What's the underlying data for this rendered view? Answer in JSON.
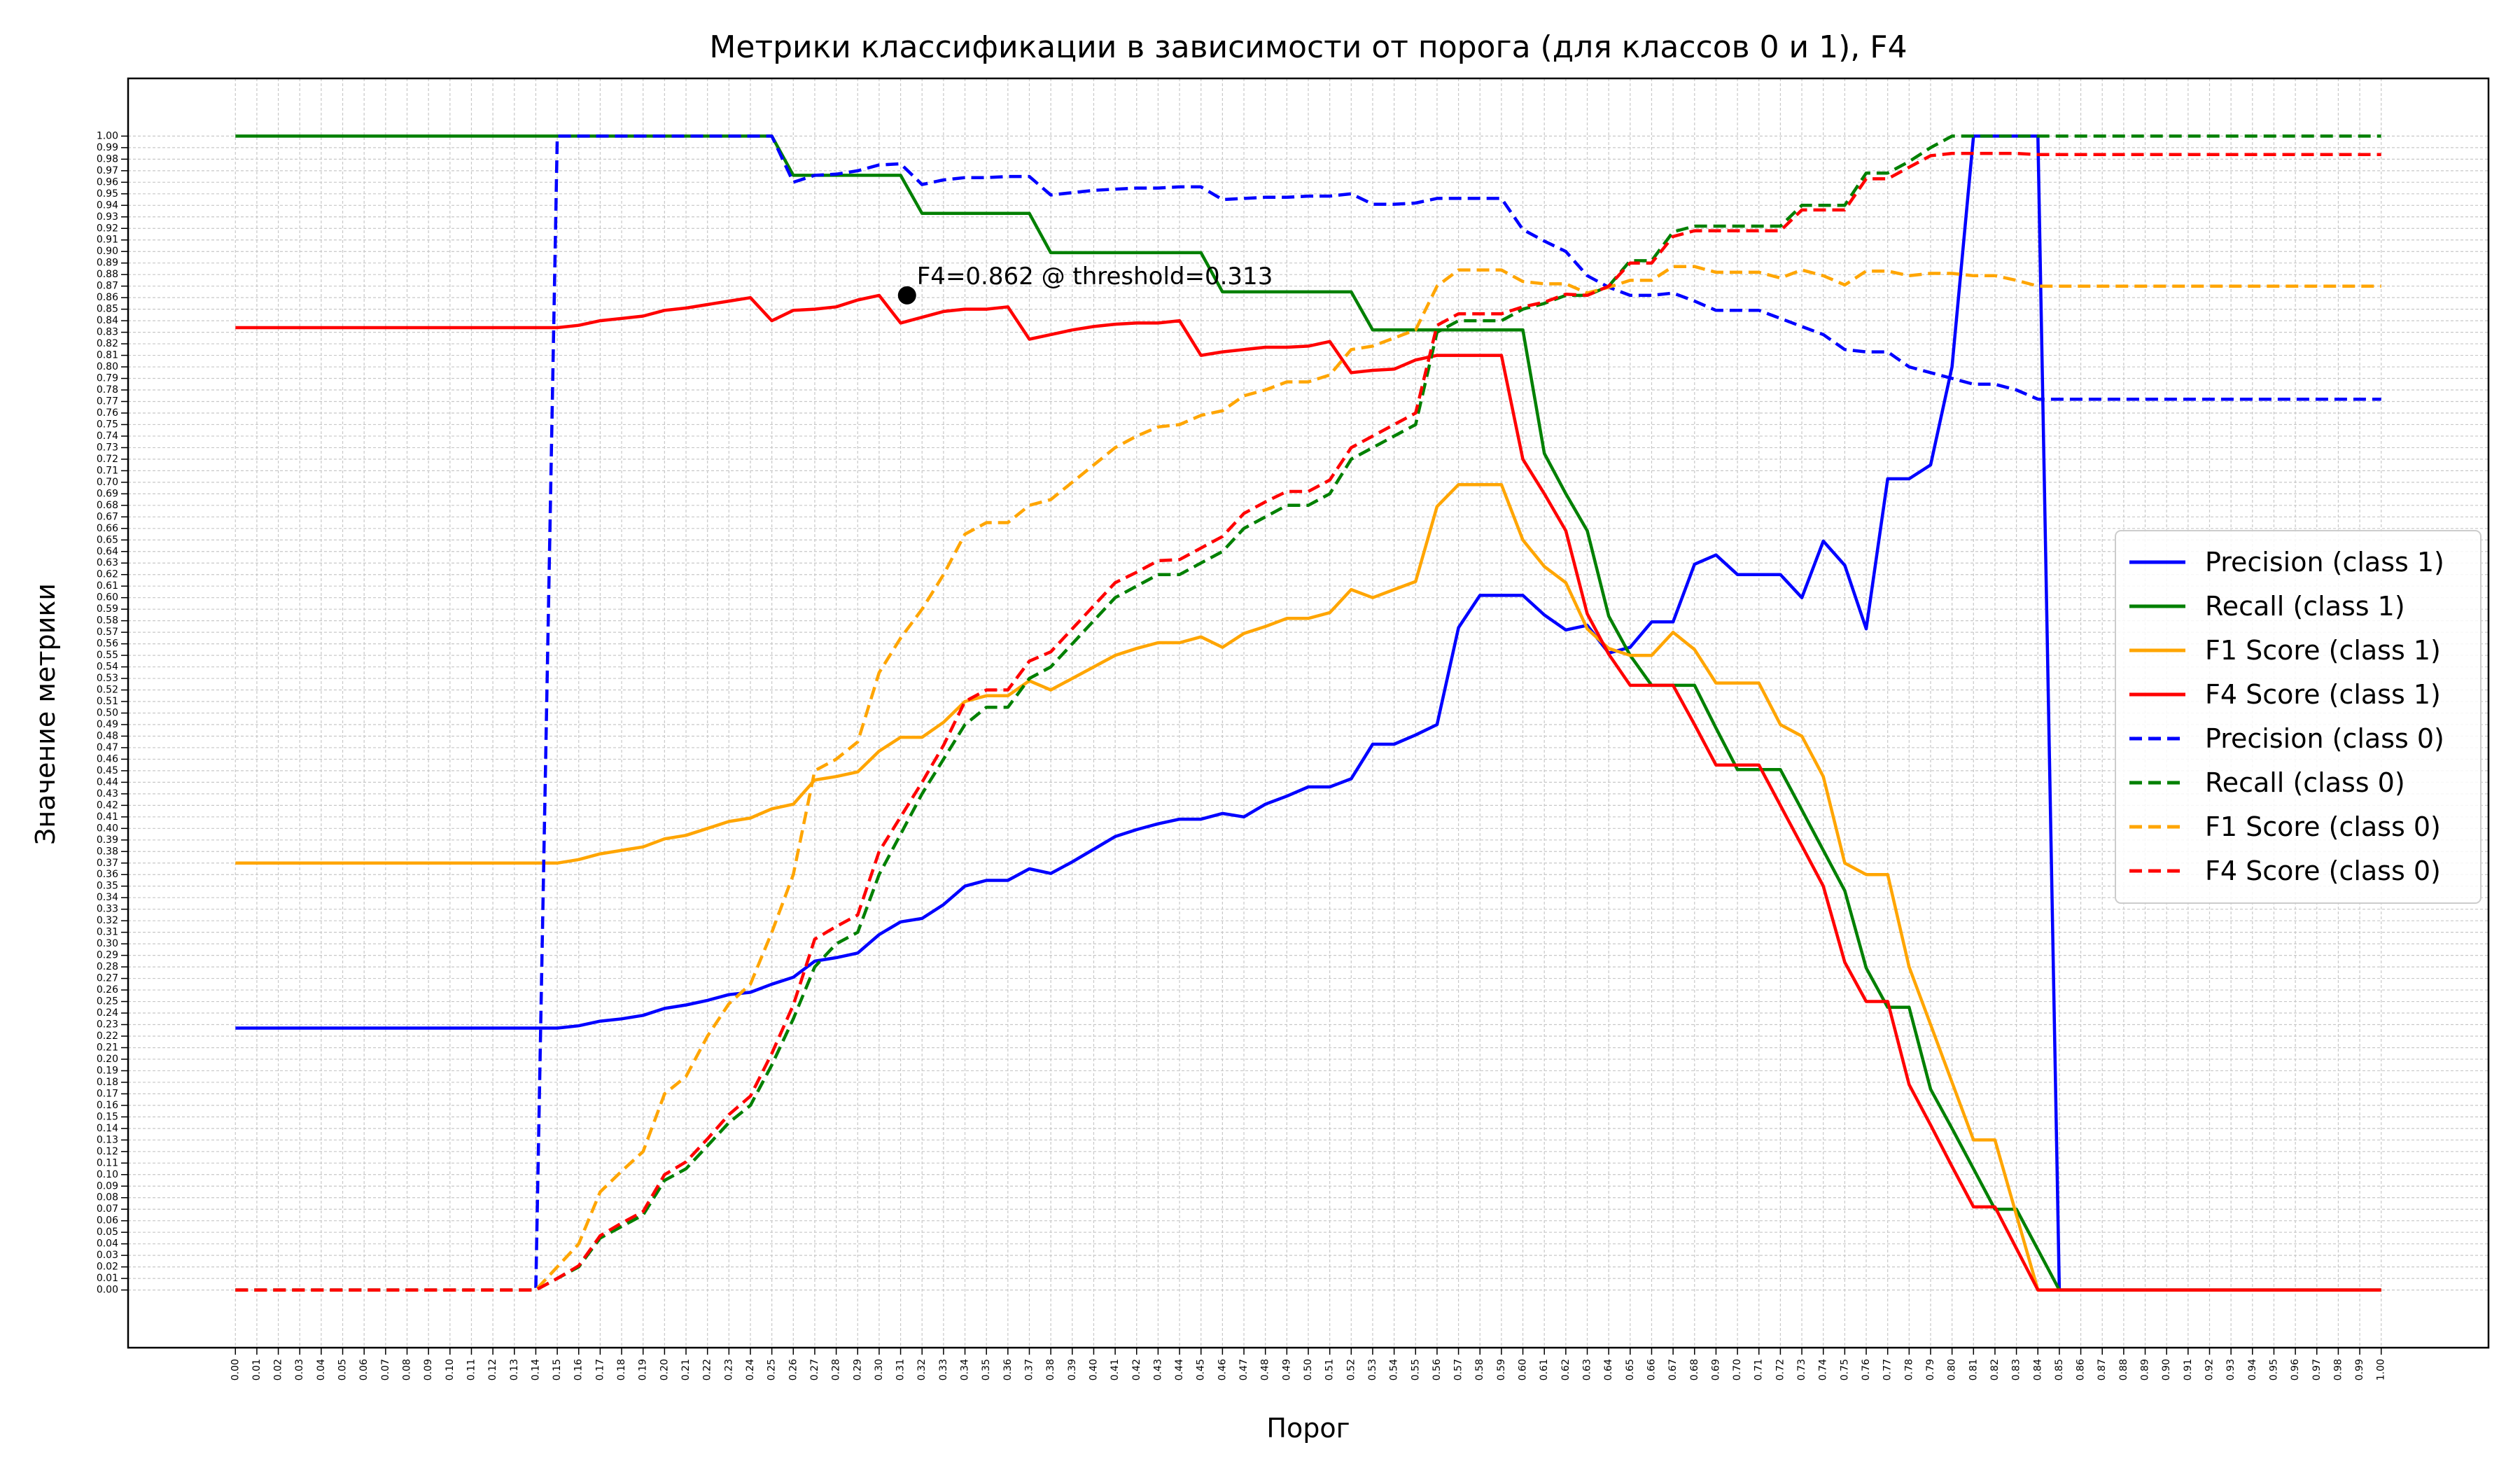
{
  "chart_data": {
    "type": "line",
    "title": "Метрики классификации в зависимости от порога (для классов 0 и 1), F4",
    "xlabel": "Порог",
    "ylabel": "Значение метрики",
    "xlim": [
      -0.05,
      1.05
    ],
    "ylim": [
      -0.05,
      1.05
    ],
    "grid": true,
    "legend_position": "center-right",
    "x": [
      0.0,
      0.01,
      0.02,
      0.03,
      0.04,
      0.05,
      0.06,
      0.07,
      0.08,
      0.09,
      0.1,
      0.11,
      0.12,
      0.13,
      0.14,
      0.15,
      0.16,
      0.17,
      0.18,
      0.19,
      0.2,
      0.21,
      0.22,
      0.23,
      0.24,
      0.25,
      0.26,
      0.27,
      0.28,
      0.29,
      0.3,
      0.31,
      0.32,
      0.33,
      0.34,
      0.35,
      0.36,
      0.37,
      0.38,
      0.39,
      0.4,
      0.41,
      0.42,
      0.43,
      0.44,
      0.45,
      0.46,
      0.47,
      0.48,
      0.49,
      0.5,
      0.51,
      0.52,
      0.53,
      0.54,
      0.55,
      0.56,
      0.57,
      0.58,
      0.59,
      0.6,
      0.61,
      0.62,
      0.63,
      0.64,
      0.65,
      0.66,
      0.67,
      0.68,
      0.69,
      0.7,
      0.71,
      0.72,
      0.73,
      0.74,
      0.75,
      0.76,
      0.77,
      0.78,
      0.79,
      0.8,
      0.81,
      0.82,
      0.83,
      0.84,
      0.85,
      0.86,
      0.87,
      0.88,
      0.89,
      0.9,
      0.91,
      0.92,
      0.93,
      0.94,
      0.95,
      0.96,
      0.97,
      0.98,
      0.99,
      1.0
    ],
    "x_tick_labels": [
      "0.00",
      "0.01",
      "0.02",
      "0.03",
      "0.04",
      "0.05",
      "0.06",
      "0.07",
      "0.08",
      "0.09",
      "0.10",
      "0.11",
      "0.12",
      "0.13",
      "0.14",
      "0.15",
      "0.16",
      "0.17",
      "0.18",
      "0.19",
      "0.20",
      "0.21",
      "0.22",
      "0.23",
      "0.24",
      "0.25",
      "0.26",
      "0.27",
      "0.28",
      "0.29",
      "0.30",
      "0.31",
      "0.32",
      "0.33",
      "0.34",
      "0.35",
      "0.36",
      "0.37",
      "0.38",
      "0.39",
      "0.40",
      "0.41",
      "0.42",
      "0.43",
      "0.44",
      "0.45",
      "0.46",
      "0.47",
      "0.48",
      "0.49",
      "0.50",
      "0.51",
      "0.52",
      "0.53",
      "0.54",
      "0.55",
      "0.56",
      "0.57",
      "0.58",
      "0.59",
      "0.60",
      "0.61",
      "0.62",
      "0.63",
      "0.64",
      "0.65",
      "0.66",
      "0.67",
      "0.68",
      "0.69",
      "0.70",
      "0.71",
      "0.72",
      "0.73",
      "0.74",
      "0.75",
      "0.76",
      "0.77",
      "0.78",
      "0.79",
      "0.80",
      "0.81",
      "0.82",
      "0.83",
      "0.84",
      "0.85",
      "0.86",
      "0.87",
      "0.88",
      "0.89",
      "0.90",
      "0.91",
      "0.92",
      "0.93",
      "0.94",
      "0.95",
      "0.96",
      "0.97",
      "0.98",
      "0.99",
      "1.00"
    ],
    "y_tick_labels": [
      "0.00",
      "0.01",
      "0.02",
      "0.03",
      "0.04",
      "0.05",
      "0.06",
      "0.07",
      "0.08",
      "0.09",
      "0.10",
      "0.11",
      "0.12",
      "0.13",
      "0.14",
      "0.15",
      "0.16",
      "0.17",
      "0.18",
      "0.19",
      "0.20",
      "0.21",
      "0.22",
      "0.23",
      "0.24",
      "0.25",
      "0.26",
      "0.27",
      "0.28",
      "0.29",
      "0.30",
      "0.31",
      "0.32",
      "0.33",
      "0.34",
      "0.35",
      "0.36",
      "0.37",
      "0.38",
      "0.39",
      "0.40",
      "0.41",
      "0.42",
      "0.43",
      "0.44",
      "0.45",
      "0.46",
      "0.47",
      "0.48",
      "0.49",
      "0.50",
      "0.51",
      "0.52",
      "0.53",
      "0.54",
      "0.55",
      "0.56",
      "0.57",
      "0.58",
      "0.59",
      "0.60",
      "0.61",
      "0.62",
      "0.63",
      "0.64",
      "0.65",
      "0.66",
      "0.67",
      "0.68",
      "0.69",
      "0.70",
      "0.71",
      "0.72",
      "0.73",
      "0.74",
      "0.75",
      "0.76",
      "0.77",
      "0.78",
      "0.79",
      "0.80",
      "0.81",
      "0.82",
      "0.83",
      "0.84",
      "0.85",
      "0.86",
      "0.87",
      "0.88",
      "0.89",
      "0.90",
      "0.91",
      "0.92",
      "0.93",
      "0.94",
      "0.95",
      "0.96",
      "0.97",
      "0.98",
      "0.99",
      "1.00"
    ],
    "series": [
      {
        "name": "Precision (class 1)",
        "color": "#0000ff",
        "dash": "solid",
        "values": [
          0.227,
          0.227,
          0.227,
          0.227,
          0.227,
          0.227,
          0.227,
          0.227,
          0.227,
          0.227,
          0.227,
          0.227,
          0.227,
          0.227,
          0.227,
          0.227,
          0.229,
          0.233,
          0.235,
          0.238,
          0.244,
          0.247,
          0.251,
          0.256,
          0.258,
          0.265,
          0.271,
          0.285,
          0.288,
          0.292,
          0.308,
          0.319,
          0.322,
          0.334,
          0.35,
          0.355,
          0.355,
          0.365,
          0.361,
          0.371,
          0.382,
          0.393,
          0.399,
          0.404,
          0.408,
          0.408,
          0.413,
          0.41,
          0.421,
          0.428,
          0.436,
          0.436,
          0.443,
          0.473,
          0.473,
          0.481,
          0.49,
          0.574,
          0.602,
          0.602,
          0.602,
          0.585,
          0.572,
          0.576,
          0.552,
          0.557,
          0.579,
          0.579,
          0.629,
          0.637,
          0.62,
          0.62,
          0.62,
          0.6,
          0.649,
          0.628,
          0.573,
          0.703,
          0.703,
          0.715,
          0.8,
          1.0,
          1.0,
          1.0,
          1.0,
          0.0,
          0.0,
          0.0,
          0.0,
          0.0,
          0.0,
          0.0,
          0.0,
          0.0,
          0.0,
          0.0,
          0.0,
          0.0,
          0.0,
          0.0,
          0.0
        ]
      },
      {
        "name": "Recall (class 1)",
        "color": "#008000",
        "dash": "solid",
        "values": [
          1.0,
          1.0,
          1.0,
          1.0,
          1.0,
          1.0,
          1.0,
          1.0,
          1.0,
          1.0,
          1.0,
          1.0,
          1.0,
          1.0,
          1.0,
          1.0,
          1.0,
          1.0,
          1.0,
          1.0,
          1.0,
          1.0,
          1.0,
          1.0,
          1.0,
          1.0,
          0.966,
          0.966,
          0.966,
          0.966,
          0.966,
          0.966,
          0.933,
          0.933,
          0.933,
          0.933,
          0.933,
          0.933,
          0.899,
          0.899,
          0.899,
          0.899,
          0.899,
          0.899,
          0.899,
          0.899,
          0.865,
          0.865,
          0.865,
          0.865,
          0.865,
          0.865,
          0.865,
          0.832,
          0.832,
          0.832,
          0.832,
          0.832,
          0.832,
          0.832,
          0.832,
          0.725,
          0.69,
          0.658,
          0.584,
          0.55,
          0.524,
          0.524,
          0.524,
          0.487,
          0.451,
          0.451,
          0.451,
          0.416,
          0.381,
          0.346,
          0.279,
          0.245,
          0.245,
          0.174,
          0.14,
          0.105,
          0.07,
          0.07,
          0.035,
          0.0,
          0.0,
          0.0,
          0.0,
          0.0,
          0.0,
          0.0,
          0.0,
          0.0,
          0.0,
          0.0,
          0.0,
          0.0,
          0.0,
          0.0,
          0.0
        ]
      },
      {
        "name": "F1 Score (class 1)",
        "color": "#ffa500",
        "dash": "solid",
        "values": [
          0.37,
          0.37,
          0.37,
          0.37,
          0.37,
          0.37,
          0.37,
          0.37,
          0.37,
          0.37,
          0.37,
          0.37,
          0.37,
          0.37,
          0.37,
          0.37,
          0.373,
          0.378,
          0.381,
          0.384,
          0.391,
          0.394,
          0.4,
          0.406,
          0.409,
          0.417,
          0.421,
          0.442,
          0.445,
          0.449,
          0.467,
          0.479,
          0.479,
          0.492,
          0.51,
          0.515,
          0.515,
          0.528,
          0.52,
          0.53,
          0.54,
          0.55,
          0.556,
          0.561,
          0.561,
          0.566,
          0.557,
          0.569,
          0.575,
          0.582,
          0.582,
          0.587,
          0.607,
          0.6,
          0.607,
          0.614,
          0.679,
          0.698,
          0.698,
          0.698,
          0.65,
          0.627,
          0.613,
          0.573,
          0.556,
          0.55,
          0.55,
          0.57,
          0.555,
          0.526,
          0.526,
          0.526,
          0.49,
          0.48,
          0.445,
          0.37,
          0.36,
          0.36,
          0.28,
          0.23,
          0.18,
          0.13,
          0.13,
          0.065,
          0.0,
          0.0,
          0.0,
          0.0,
          0.0,
          0.0,
          0.0,
          0.0,
          0.0,
          0.0,
          0.0,
          0.0,
          0.0,
          0.0,
          0.0,
          0.0,
          0.0
        ]
      },
      {
        "name": "F4 Score (class 1)",
        "color": "#ff0000",
        "dash": "solid",
        "values": [
          0.834,
          0.834,
          0.834,
          0.834,
          0.834,
          0.834,
          0.834,
          0.834,
          0.834,
          0.834,
          0.834,
          0.834,
          0.834,
          0.834,
          0.834,
          0.834,
          0.836,
          0.84,
          0.842,
          0.844,
          0.849,
          0.851,
          0.854,
          0.857,
          0.86,
          0.84,
          0.849,
          0.85,
          0.852,
          0.858,
          0.862,
          0.838,
          0.843,
          0.848,
          0.85,
          0.85,
          0.852,
          0.824,
          0.828,
          0.832,
          0.835,
          0.837,
          0.838,
          0.838,
          0.84,
          0.81,
          0.813,
          0.815,
          0.817,
          0.817,
          0.818,
          0.822,
          0.795,
          0.797,
          0.798,
          0.806,
          0.81,
          0.81,
          0.81,
          0.81,
          0.72,
          0.69,
          0.658,
          0.586,
          0.551,
          0.524,
          0.524,
          0.524,
          0.49,
          0.455,
          0.455,
          0.455,
          0.42,
          0.385,
          0.35,
          0.284,
          0.25,
          0.25,
          0.178,
          0.143,
          0.107,
          0.072,
          0.072,
          0.036,
          0.0,
          0.0,
          0.0,
          0.0,
          0.0,
          0.0,
          0.0,
          0.0,
          0.0,
          0.0,
          0.0,
          0.0,
          0.0,
          0.0,
          0.0,
          0.0,
          0.0
        ]
      },
      {
        "name": "Precision (class 0)",
        "color": "#0000ff",
        "dash": "dashed",
        "values": [
          0.0,
          0.0,
          0.0,
          0.0,
          0.0,
          0.0,
          0.0,
          0.0,
          0.0,
          0.0,
          0.0,
          0.0,
          0.0,
          0.0,
          0.0,
          1.0,
          1.0,
          1.0,
          1.0,
          1.0,
          1.0,
          1.0,
          1.0,
          1.0,
          1.0,
          1.0,
          0.96,
          0.966,
          0.967,
          0.97,
          0.975,
          0.976,
          0.958,
          0.962,
          0.964,
          0.964,
          0.965,
          0.965,
          0.949,
          0.951,
          0.953,
          0.954,
          0.955,
          0.955,
          0.956,
          0.956,
          0.945,
          0.946,
          0.947,
          0.947,
          0.948,
          0.948,
          0.95,
          0.941,
          0.941,
          0.942,
          0.946,
          0.946,
          0.946,
          0.946,
          0.919,
          0.909,
          0.9,
          0.879,
          0.869,
          0.862,
          0.862,
          0.864,
          0.857,
          0.849,
          0.849,
          0.849,
          0.842,
          0.835,
          0.828,
          0.815,
          0.813,
          0.813,
          0.8,
          0.795,
          0.79,
          0.785,
          0.785,
          0.78,
          0.772,
          0.772,
          0.772,
          0.772,
          0.772,
          0.772,
          0.772,
          0.772,
          0.772,
          0.772,
          0.772,
          0.772,
          0.772,
          0.772,
          0.772,
          0.772,
          0.772
        ]
      },
      {
        "name": "Recall (class 0)",
        "color": "#008000",
        "dash": "dashed",
        "values": [
          0.0,
          0.0,
          0.0,
          0.0,
          0.0,
          0.0,
          0.0,
          0.0,
          0.0,
          0.0,
          0.0,
          0.0,
          0.0,
          0.0,
          0.0,
          0.01,
          0.02,
          0.045,
          0.055,
          0.065,
          0.095,
          0.105,
          0.125,
          0.145,
          0.16,
          0.195,
          0.235,
          0.28,
          0.3,
          0.31,
          0.36,
          0.395,
          0.43,
          0.46,
          0.49,
          0.505,
          0.505,
          0.53,
          0.54,
          0.56,
          0.58,
          0.6,
          0.61,
          0.62,
          0.62,
          0.63,
          0.64,
          0.66,
          0.67,
          0.68,
          0.68,
          0.69,
          0.72,
          0.73,
          0.74,
          0.75,
          0.83,
          0.84,
          0.84,
          0.84,
          0.85,
          0.855,
          0.862,
          0.862,
          0.87,
          0.892,
          0.892,
          0.917,
          0.922,
          0.922,
          0.922,
          0.922,
          0.922,
          0.94,
          0.94,
          0.94,
          0.968,
          0.968,
          0.978,
          0.99,
          1.0,
          1.0,
          1.0,
          1.0,
          1.0,
          1.0,
          1.0,
          1.0,
          1.0,
          1.0,
          1.0,
          1.0,
          1.0,
          1.0,
          1.0,
          1.0,
          1.0,
          1.0,
          1.0,
          1.0,
          1.0
        ]
      },
      {
        "name": "F1 Score (class 0)",
        "color": "#ffa500",
        "dash": "dashed",
        "values": [
          0.0,
          0.0,
          0.0,
          0.0,
          0.0,
          0.0,
          0.0,
          0.0,
          0.0,
          0.0,
          0.0,
          0.0,
          0.0,
          0.0,
          0.0,
          0.02,
          0.04,
          0.085,
          0.103,
          0.12,
          0.17,
          0.185,
          0.22,
          0.248,
          0.265,
          0.31,
          0.36,
          0.45,
          0.46,
          0.475,
          0.535,
          0.565,
          0.59,
          0.62,
          0.655,
          0.665,
          0.665,
          0.68,
          0.685,
          0.7,
          0.715,
          0.73,
          0.74,
          0.748,
          0.75,
          0.758,
          0.762,
          0.775,
          0.78,
          0.787,
          0.787,
          0.793,
          0.815,
          0.818,
          0.825,
          0.832,
          0.87,
          0.884,
          0.884,
          0.884,
          0.874,
          0.872,
          0.872,
          0.864,
          0.869,
          0.875,
          0.875,
          0.887,
          0.887,
          0.882,
          0.882,
          0.882,
          0.877,
          0.884,
          0.879,
          0.871,
          0.883,
          0.883,
          0.879,
          0.881,
          0.881,
          0.879,
          0.879,
          0.875,
          0.87,
          0.87,
          0.87,
          0.87,
          0.87,
          0.87,
          0.87,
          0.87,
          0.87,
          0.87,
          0.87,
          0.87,
          0.87,
          0.87,
          0.87,
          0.87,
          0.87
        ]
      },
      {
        "name": "F4 Score (class 0)",
        "color": "#ff0000",
        "dash": "dashed",
        "values": [
          0.0,
          0.0,
          0.0,
          0.0,
          0.0,
          0.0,
          0.0,
          0.0,
          0.0,
          0.0,
          0.0,
          0.0,
          0.0,
          0.0,
          0.0,
          0.01,
          0.021,
          0.047,
          0.058,
          0.068,
          0.1,
          0.111,
          0.131,
          0.152,
          0.168,
          0.205,
          0.247,
          0.304,
          0.315,
          0.325,
          0.38,
          0.41,
          0.44,
          0.472,
          0.51,
          0.52,
          0.52,
          0.545,
          0.553,
          0.573,
          0.593,
          0.613,
          0.622,
          0.632,
          0.633,
          0.643,
          0.653,
          0.673,
          0.683,
          0.692,
          0.692,
          0.702,
          0.73,
          0.74,
          0.75,
          0.76,
          0.836,
          0.846,
          0.846,
          0.846,
          0.852,
          0.856,
          0.863,
          0.862,
          0.87,
          0.89,
          0.89,
          0.913,
          0.918,
          0.918,
          0.918,
          0.918,
          0.918,
          0.936,
          0.936,
          0.936,
          0.963,
          0.963,
          0.973,
          0.983,
          0.985,
          0.985,
          0.985,
          0.985,
          0.984,
          0.984,
          0.984,
          0.984,
          0.984,
          0.984,
          0.984,
          0.984,
          0.984,
          0.984,
          0.984,
          0.984,
          0.984,
          0.984,
          0.984,
          0.984,
          0.984
        ]
      }
    ],
    "annotations": [
      {
        "text": "F4=0.862 @ threshold=0.313",
        "x": 0.313,
        "y": 0.862
      }
    ]
  }
}
